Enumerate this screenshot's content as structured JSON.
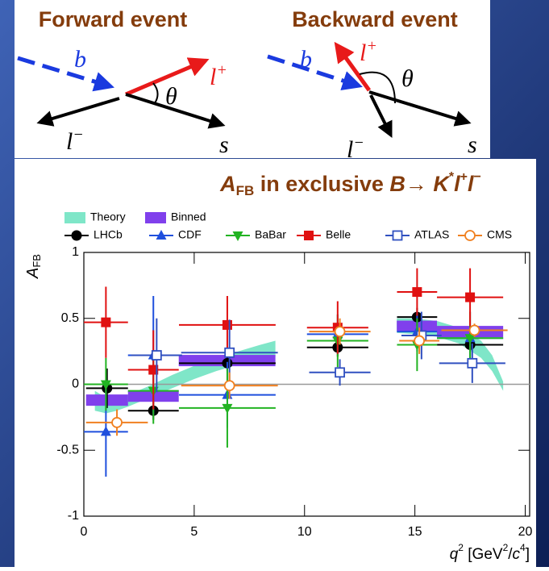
{
  "header": {
    "forward": {
      "title": "Forward event",
      "b": "b",
      "lp": "l",
      "lp_sup": "+",
      "theta": "θ",
      "lm": "l",
      "lm_sup": "−",
      "s": "s"
    },
    "backward": {
      "title": "Backward event",
      "b": "b",
      "lp": "l",
      "lp_sup": "+",
      "theta": "θ",
      "lm": "l",
      "lm_sup": "−",
      "s": "s"
    }
  },
  "chart_data": {
    "type": "scatter",
    "title": [
      "A",
      "FB",
      " in exclusive ",
      "B",
      "→ ",
      "K",
      "*",
      "l",
      "+",
      "l",
      "−"
    ],
    "y_label": [
      "A",
      "FB"
    ],
    "x_label": [
      "q",
      "2",
      " [GeV",
      "2",
      "/",
      "c",
      "4",
      "]"
    ],
    "xlim": [
      0,
      20.2
    ],
    "ylim": [
      -1,
      1
    ],
    "xticks": [
      0,
      5,
      10,
      15,
      20
    ],
    "yticks": [
      -1,
      -0.5,
      0,
      0.5,
      1
    ],
    "hline": 0,
    "theory": {
      "name": "Theory",
      "color": "#7fe6c8",
      "x": [
        0.5,
        1,
        1.5,
        2,
        3,
        4,
        5,
        6,
        7,
        8,
        8.68,
        11,
        14.18,
        15,
        16,
        17,
        18,
        18.5,
        19
      ],
      "low": [
        -0.2,
        -0.22,
        -0.2,
        -0.17,
        -0.1,
        -0.03,
        0.04,
        0.1,
        0.15,
        0.19,
        0.21,
        null,
        0.39,
        0.38,
        0.36,
        0.31,
        0.2,
        0.1,
        -0.05
      ],
      "high": [
        -0.05,
        -0.1,
        -0.1,
        -0.08,
        -0.01,
        0.07,
        0.14,
        0.2,
        0.25,
        0.3,
        0.33,
        null,
        0.5,
        0.5,
        0.48,
        0.43,
        0.33,
        0.22,
        0.02
      ]
    },
    "binned": {
      "name": "Binned",
      "color": "#8040ec",
      "x_low": [
        0.1,
        2,
        4.3,
        14.18,
        16
      ],
      "x_high": [
        2,
        4.3,
        8.68,
        16,
        19
      ],
      "values": [
        -0.12,
        -0.09,
        0.18,
        0.44,
        0.4
      ]
    },
    "series": [
      {
        "name": "LHCb",
        "color": "#000000",
        "marker": "circle",
        "x": [
          1.05,
          3.15,
          6.5,
          11.5,
          15.1,
          17.5
        ],
        "xerr": [
          0.95,
          1.15,
          2.19,
          1.39,
          0.91,
          1.5
        ],
        "values": [
          -0.03,
          -0.2,
          0.16,
          0.28,
          0.51,
          0.3
        ],
        "yerr": [
          0.15,
          0.07,
          0.06,
          0.07,
          0.07,
          0.08
        ]
      },
      {
        "name": "CDF",
        "color": "#1f4fdd",
        "marker": "triangle-up",
        "x": [
          1,
          3.15,
          6.5,
          11.5,
          15.1,
          17.5
        ],
        "xerr": [
          1,
          1.15,
          2.19,
          1.39,
          0.91,
          1.5
        ],
        "values": [
          -0.36,
          0.22,
          -0.08,
          0.38,
          0.4,
          0.35
        ],
        "yerr": [
          0.34,
          0.45,
          0.25,
          0.15,
          0.15,
          0.2
        ]
      },
      {
        "name": "BaBar",
        "color": "#22b322",
        "marker": "triangle-down",
        "x": [
          1,
          3.15,
          6.5,
          11.5,
          15.1,
          17.5
        ],
        "xerr": [
          1,
          1.15,
          2.19,
          1.39,
          0.91,
          1.5
        ],
        "values": [
          0,
          -0.05,
          -0.18,
          0.33,
          0.3,
          0.35
        ],
        "yerr": [
          0.2,
          0.25,
          0.3,
          0.2,
          0.2,
          0.2
        ]
      },
      {
        "name": "Belle",
        "color": "#e01010",
        "marker": "square",
        "x": [
          1,
          3.15,
          6.5,
          11.5,
          15.1,
          17.5
        ],
        "xerr": [
          1,
          1.15,
          2.19,
          1.39,
          0.91,
          1.5
        ],
        "values": [
          0.47,
          0.11,
          0.45,
          0.43,
          0.7,
          0.66
        ],
        "yerr": [
          0.27,
          0.3,
          0.22,
          0.2,
          0.18,
          0.22
        ]
      },
      {
        "name": "ATLAS",
        "color": "#3050c0",
        "marker": "square-open",
        "x": [
          3.3,
          6.6,
          11.6,
          15.3,
          17.6
        ],
        "xerr": [
          1.15,
          2.19,
          1.39,
          0.91,
          1.5
        ],
        "values": [
          0.22,
          0.24,
          0.09,
          0.37,
          0.16
        ],
        "yerr": [
          0.28,
          0.25,
          0.1,
          0.18,
          0.15
        ]
      },
      {
        "name": "CMS",
        "color": "#f08020",
        "marker": "circle-open",
        "x": [
          1.5,
          6.6,
          11.6,
          15.2,
          17.7
        ],
        "xerr": [
          1.4,
          2.19,
          1.39,
          0.91,
          1.5
        ],
        "values": [
          -0.29,
          -0.01,
          0.4,
          0.33,
          0.41
        ],
        "yerr": [
          0.1,
          0.1,
          0.1,
          0.1,
          0.05
        ]
      }
    ]
  }
}
